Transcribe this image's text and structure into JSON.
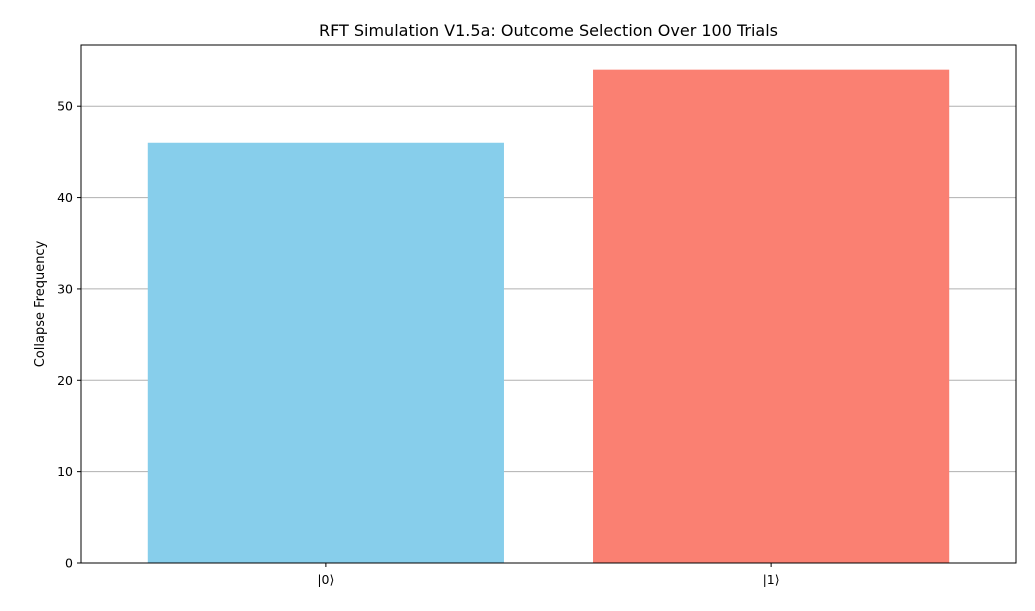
{
  "chart_data": {
    "type": "bar",
    "title": "RFT Simulation V1.5a: Outcome Selection Over 100 Trials",
    "xlabel": "",
    "ylabel": "Collapse Frequency",
    "categories": [
      "|0⟩",
      "|1⟩"
    ],
    "values": [
      46,
      54
    ],
    "colors": [
      "#87ceeb",
      "#fa8072"
    ],
    "ylim": [
      0,
      56.7
    ],
    "yticks": [
      0,
      10,
      20,
      30,
      40,
      50
    ],
    "grid": "y",
    "legend": "none"
  }
}
